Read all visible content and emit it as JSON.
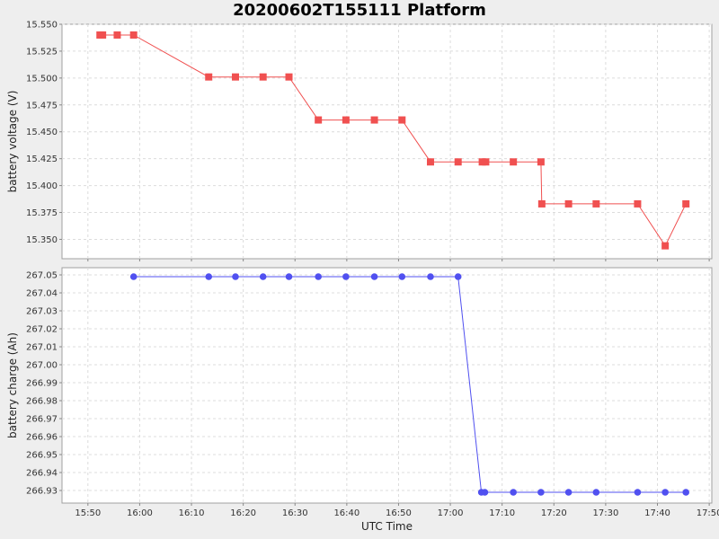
{
  "title": "20200602T155111 Platform",
  "chart_data": [
    {
      "type": "line",
      "ylabel": "battery voltage (V)",
      "xlabel": "",
      "ylim": [
        15.332,
        15.55
      ],
      "yticks": [
        "15.350",
        "15.375",
        "15.400",
        "15.425",
        "15.450",
        "15.475",
        "15.500",
        "15.525",
        "15.550"
      ],
      "grid": true,
      "series": [
        {
          "marker": "square",
          "color": "#f05050",
          "x": [
            "15:52:20",
            "15:52:50",
            "15:55:40",
            "15:58:50",
            "16:13:20",
            "16:18:30",
            "16:23:50",
            "16:28:50",
            "16:34:30",
            "16:39:50",
            "16:45:20",
            "16:50:40",
            "16:56:10",
            "17:01:30",
            "17:06:10",
            "17:06:50",
            "17:12:10",
            "17:17:30",
            "17:17:40",
            "17:22:50",
            "17:28:10",
            "17:36:10",
            "17:41:30",
            "17:45:30"
          ],
          "values": [
            15.54,
            15.54,
            15.54,
            15.54,
            15.501,
            15.501,
            15.501,
            15.501,
            15.461,
            15.461,
            15.461,
            15.461,
            15.422,
            15.422,
            15.422,
            15.422,
            15.422,
            15.422,
            15.383,
            15.383,
            15.383,
            15.383,
            15.344,
            15.383
          ]
        }
      ]
    },
    {
      "type": "line",
      "ylabel": "battery charge (Ah)",
      "xlabel": "UTC Time",
      "ylim": [
        266.923,
        267.054
      ],
      "yticks": [
        "266.93",
        "266.94",
        "266.95",
        "266.96",
        "266.97",
        "266.98",
        "266.99",
        "267.00",
        "267.01",
        "267.02",
        "267.03",
        "267.04",
        "267.05"
      ],
      "grid": true,
      "series": [
        {
          "marker": "circle",
          "color": "#5050f0",
          "x": [
            "15:58:50",
            "16:13:20",
            "16:18:30",
            "16:23:50",
            "16:28:50",
            "16:34:30",
            "16:39:50",
            "16:45:20",
            "16:50:40",
            "16:56:10",
            "17:01:30",
            "17:06:00",
            "17:06:40",
            "17:12:10",
            "17:17:30",
            "17:22:50",
            "17:28:10",
            "17:36:10",
            "17:41:30",
            "17:45:30"
          ],
          "values": [
            267.049,
            267.049,
            267.049,
            267.049,
            267.049,
            267.049,
            267.049,
            267.049,
            267.049,
            267.049,
            267.049,
            266.929,
            266.929,
            266.929,
            266.929,
            266.929,
            266.929,
            266.929,
            266.929,
            266.929
          ]
        }
      ]
    }
  ],
  "xaxis": {
    "range": [
      "15:45:00",
      "17:50:30"
    ],
    "ticks": [
      "15:50",
      "16:00",
      "16:10",
      "16:20",
      "16:30",
      "16:40",
      "16:50",
      "17:00",
      "17:10",
      "17:20",
      "17:30",
      "17:40",
      "17:50"
    ]
  }
}
